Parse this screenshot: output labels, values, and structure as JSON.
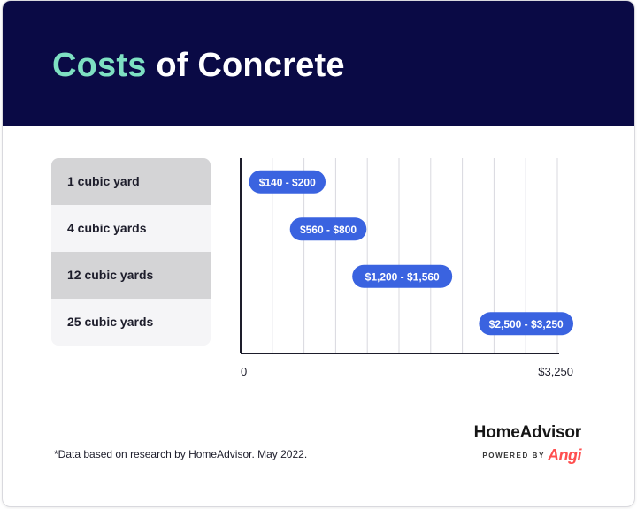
{
  "header": {
    "title_accent": "Costs",
    "title_rest": " of Concrete",
    "background_color": "#0a0a45",
    "accent_color": "#7ee0c2"
  },
  "chart_data": {
    "type": "bar",
    "orientation": "horizontal",
    "title": "Costs of Concrete",
    "categories": [
      "1 cubic yard",
      "4 cubic yards",
      "12 cubic yards",
      "25 cubic yards"
    ],
    "ranges": [
      {
        "low": 140,
        "high": 200,
        "label": "$140 - $200"
      },
      {
        "low": 560,
        "high": 800,
        "label": "$560 - $800"
      },
      {
        "low": 1200,
        "high": 1560,
        "label": "$1,200 - $1,560"
      },
      {
        "low": 2500,
        "high": 3250,
        "label": "$2,500 - $3,250"
      }
    ],
    "xlim": [
      0,
      3250
    ],
    "x_tick_labels": [
      "0",
      "$3,250"
    ],
    "grid": true,
    "bar_color": "#3a63e0",
    "grid_color": "#d8d8df",
    "axis_color": "#1d1d2b"
  },
  "footer": {
    "footnote": "*Data based on research by HomeAdvisor. May 2022.",
    "brand_name": "HomeAdvisor",
    "brand_powered": "POWERED BY",
    "brand_angi": "Angi",
    "angi_color": "#ff4f4f"
  }
}
